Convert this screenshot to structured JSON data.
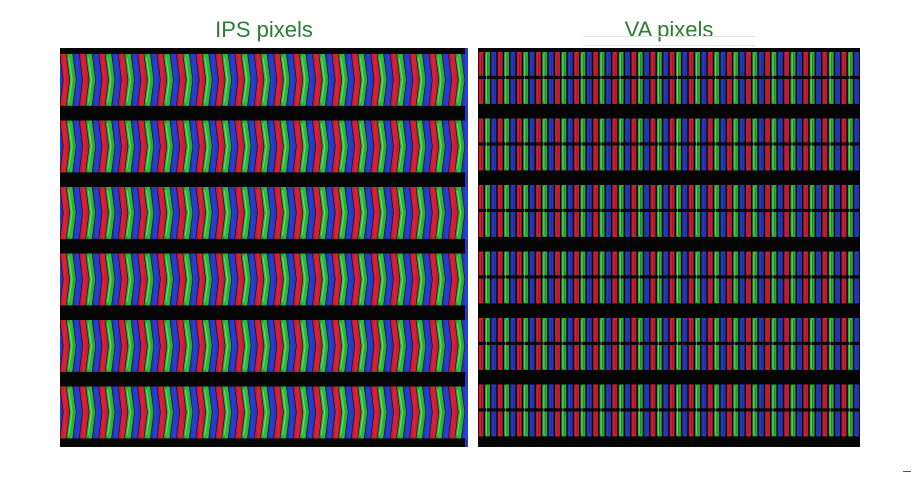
{
  "panels": [
    {
      "id": "ips",
      "title": "IPS pixels",
      "subpixel_layout": "chevron",
      "pixel_rows": 6,
      "pixel_columns": 21
    },
    {
      "id": "va",
      "title": "VA pixels",
      "subpixel_layout": "two-domain stripe",
      "pixel_rows": 6,
      "pixel_columns": 20
    }
  ],
  "colors": {
    "title_text": "#2e7d32",
    "background": "#ffffff",
    "panel_background": "#050505",
    "subpixel_red": "#e0203a",
    "subpixel_green": "#2ec23c",
    "subpixel_blue": "#2a3fd8",
    "subpixel_highlight": "#9cf5a4"
  }
}
